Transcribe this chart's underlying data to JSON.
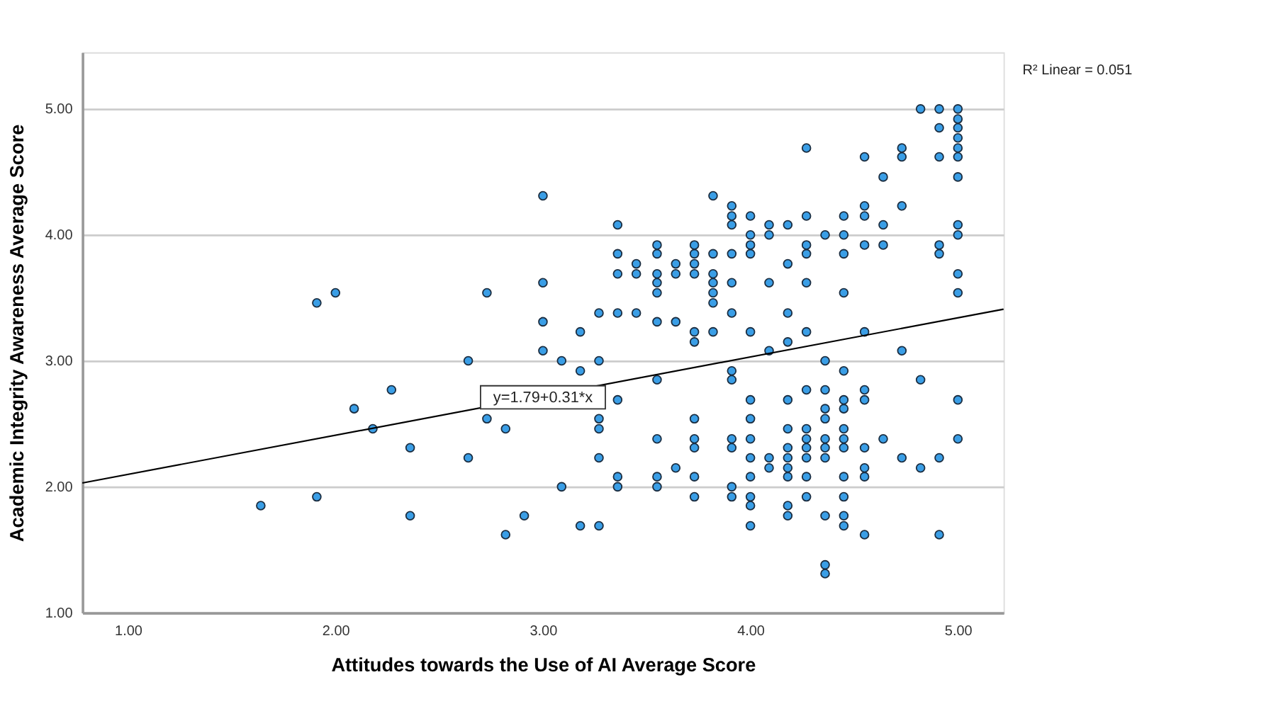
{
  "chart_data": {
    "type": "scatter",
    "xlabel": "Attitudes towards the Use of AI Average Score",
    "ylabel": "Academic Integrity Awareness Average Score",
    "xlim": [
      0.78,
      5.22
    ],
    "ylim": [
      1.0,
      5.45
    ],
    "xticks": [
      {
        "value": 1,
        "label": "1.00"
      },
      {
        "value": 2,
        "label": "2.00"
      },
      {
        "value": 3,
        "label": "3.00"
      },
      {
        "value": 4,
        "label": "4.00"
      },
      {
        "value": 5,
        "label": "5.00"
      }
    ],
    "yticks": [
      {
        "value": 1,
        "label": "1.00"
      },
      {
        "value": 2,
        "label": "2.00"
      },
      {
        "value": 3,
        "label": "3.00"
      },
      {
        "value": 4,
        "label": "4.00"
      },
      {
        "value": 5,
        "label": "5.00"
      }
    ],
    "grid": "y",
    "annotations": [
      "R² Linear = 0.051",
      {
        "text": "y=1.79+0.31*x",
        "x": 3.0,
        "y": 2.71
      }
    ],
    "series": [
      {
        "marker": "circle",
        "color": "#3a9ee6",
        "x": [
          1.91,
          2.0,
          2.27,
          2.09,
          2.18,
          2.36,
          1.64,
          1.91,
          2.36,
          2.64,
          2.64,
          2.73,
          2.73,
          2.82,
          2.82,
          2.91,
          3.0,
          3.0,
          3.0,
          3.0,
          3.09,
          3.09,
          3.18,
          3.18,
          3.18,
          3.27,
          3.27,
          3.27,
          3.27,
          3.27,
          3.27,
          3.36,
          3.36,
          3.36,
          3.36,
          3.36,
          3.36,
          3.36,
          3.45,
          3.45,
          3.45,
          3.55,
          3.55,
          3.55,
          3.55,
          3.55,
          3.55,
          3.55,
          3.55,
          3.55,
          3.55,
          3.64,
          3.64,
          3.64,
          3.64,
          3.73,
          3.73,
          3.73,
          3.73,
          3.73,
          3.73,
          3.73,
          3.73,
          3.73,
          3.73,
          3.73,
          3.82,
          3.82,
          3.82,
          3.82,
          3.82,
          3.82,
          3.82,
          3.91,
          3.91,
          3.91,
          3.91,
          3.91,
          3.91,
          3.91,
          3.91,
          3.91,
          3.91,
          3.91,
          3.91,
          4.0,
          4.0,
          4.0,
          4.0,
          4.0,
          4.0,
          4.0,
          4.0,
          4.0,
          4.0,
          4.0,
          4.0,
          4.0,
          4.09,
          4.09,
          4.09,
          4.09,
          4.09,
          4.09,
          4.18,
          4.18,
          4.18,
          4.18,
          4.18,
          4.18,
          4.18,
          4.18,
          4.18,
          4.18,
          4.18,
          4.18,
          4.27,
          4.27,
          4.27,
          4.27,
          4.27,
          4.27,
          4.27,
          4.27,
          4.27,
          4.27,
          4.27,
          4.27,
          4.27,
          4.36,
          4.36,
          4.36,
          4.36,
          4.36,
          4.36,
          4.36,
          4.36,
          4.36,
          4.36,
          4.36,
          4.45,
          4.45,
          4.45,
          4.45,
          4.45,
          4.45,
          4.45,
          4.45,
          4.45,
          4.45,
          4.45,
          4.45,
          4.45,
          4.45,
          4.55,
          4.55,
          4.55,
          4.55,
          4.55,
          4.55,
          4.55,
          4.55,
          4.55,
          4.55,
          4.55,
          4.64,
          4.64,
          4.64,
          4.64,
          4.73,
          4.73,
          4.73,
          4.73,
          4.73,
          4.82,
          4.82,
          4.82,
          4.91,
          4.91,
          4.91,
          4.91,
          4.91,
          4.91,
          4.91,
          5.0,
          5.0,
          5.0,
          5.0,
          5.0,
          5.0,
          5.0,
          5.0,
          5.0,
          5.0,
          5.0,
          5.0,
          5.0
        ],
        "values": [
          3.46,
          3.54,
          2.77,
          2.62,
          2.46,
          2.31,
          1.85,
          1.92,
          1.77,
          3.0,
          2.23,
          3.54,
          2.54,
          2.46,
          1.62,
          1.77,
          4.31,
          3.62,
          3.31,
          3.08,
          3.0,
          2.0,
          3.23,
          2.92,
          1.69,
          3.38,
          3.0,
          2.54,
          2.46,
          2.23,
          1.69,
          4.08,
          3.85,
          3.69,
          3.38,
          2.69,
          2.08,
          2.0,
          3.77,
          3.69,
          3.38,
          3.92,
          3.85,
          3.69,
          3.62,
          3.54,
          3.31,
          2.85,
          2.38,
          2.08,
          2.0,
          3.77,
          3.69,
          3.31,
          2.15,
          3.92,
          3.85,
          3.77,
          3.69,
          3.23,
          3.15,
          2.54,
          2.38,
          2.31,
          2.08,
          1.92,
          4.31,
          3.85,
          3.69,
          3.62,
          3.54,
          3.46,
          3.23,
          4.23,
          4.15,
          4.08,
          3.85,
          3.62,
          3.38,
          2.92,
          2.85,
          2.38,
          2.31,
          2.0,
          1.92,
          4.15,
          4.0,
          3.92,
          3.85,
          3.23,
          2.69,
          2.54,
          2.38,
          2.23,
          2.08,
          1.92,
          1.85,
          1.69,
          4.08,
          4.0,
          3.62,
          3.08,
          2.23,
          2.15,
          4.08,
          3.77,
          3.38,
          3.15,
          2.69,
          2.46,
          2.31,
          2.23,
          2.15,
          2.08,
          1.85,
          1.77,
          4.69,
          4.15,
          3.92,
          3.85,
          3.62,
          3.23,
          2.77,
          2.46,
          2.38,
          2.31,
          2.23,
          2.08,
          1.92,
          4.0,
          3.0,
          2.77,
          2.62,
          2.54,
          2.38,
          2.31,
          2.23,
          1.77,
          1.38,
          1.31,
          4.15,
          4.0,
          3.85,
          3.54,
          2.92,
          2.69,
          2.62,
          2.46,
          2.38,
          2.31,
          2.08,
          1.92,
          1.77,
          1.69,
          4.62,
          4.23,
          4.15,
          3.92,
          3.23,
          2.77,
          2.69,
          2.31,
          2.15,
          2.08,
          1.62,
          4.46,
          4.08,
          3.92,
          2.38,
          4.69,
          4.62,
          4.23,
          3.08,
          2.23,
          5.0,
          2.85,
          2.15,
          5.0,
          4.85,
          4.62,
          3.92,
          3.85,
          2.23,
          1.62,
          5.0,
          4.92,
          4.85,
          4.77,
          4.69,
          4.62,
          4.46,
          4.08,
          4.0,
          3.69,
          3.54,
          2.69,
          2.38
        ]
      },
      {
        "type": "line",
        "line_style": "solid",
        "color": "#000000",
        "x": [
          0.78,
          5.22
        ],
        "values": [
          2.03,
          3.41
        ]
      }
    ]
  }
}
